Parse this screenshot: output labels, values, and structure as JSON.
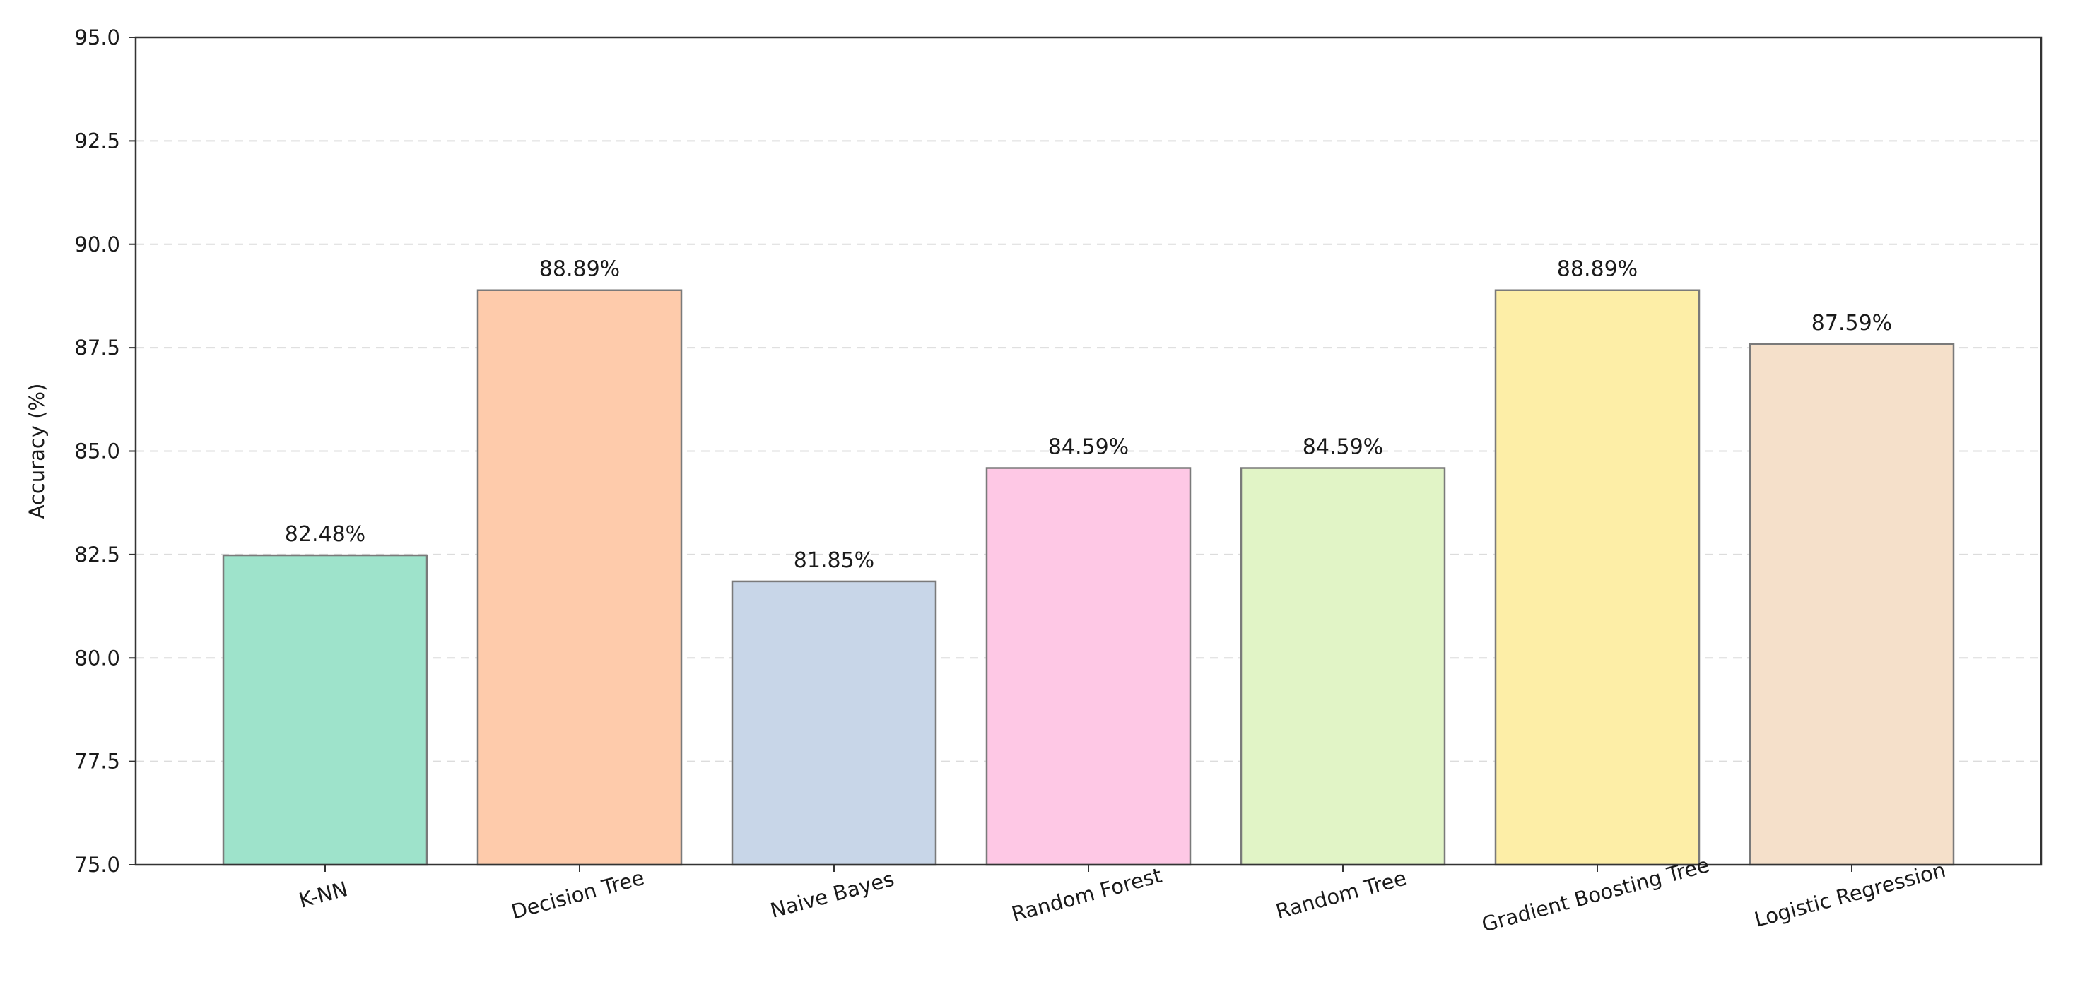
{
  "chart_data": {
    "type": "bar",
    "title": "",
    "xlabel": "",
    "ylabel": "Accuracy (%)",
    "ylim": [
      75.0,
      95.0
    ],
    "yticks": [
      "75.0",
      "77.5",
      "80.0",
      "82.5",
      "85.0",
      "87.5",
      "90.0",
      "92.5",
      "95.0"
    ],
    "grid": "y-dashed",
    "categories": [
      "K-NN",
      "Decision Tree",
      "Naive Bayes",
      "Random Forest",
      "Random Tree",
      "Gradient Boosting Tree",
      "Logistic Regression"
    ],
    "values": [
      82.48,
      88.89,
      81.85,
      84.59,
      84.59,
      88.89,
      87.59
    ],
    "data_labels": [
      "82.48%",
      "88.89%",
      "81.85%",
      "84.59%",
      "84.59%",
      "88.89%",
      "87.59%"
    ],
    "colors": [
      "#9ee3cb",
      "#fecbab",
      "#c8d6e8",
      "#fec8e5",
      "#e1f4c6",
      "#fdeea7",
      "#f5e0ca"
    ],
    "edge_color": "#7a7a7a"
  }
}
